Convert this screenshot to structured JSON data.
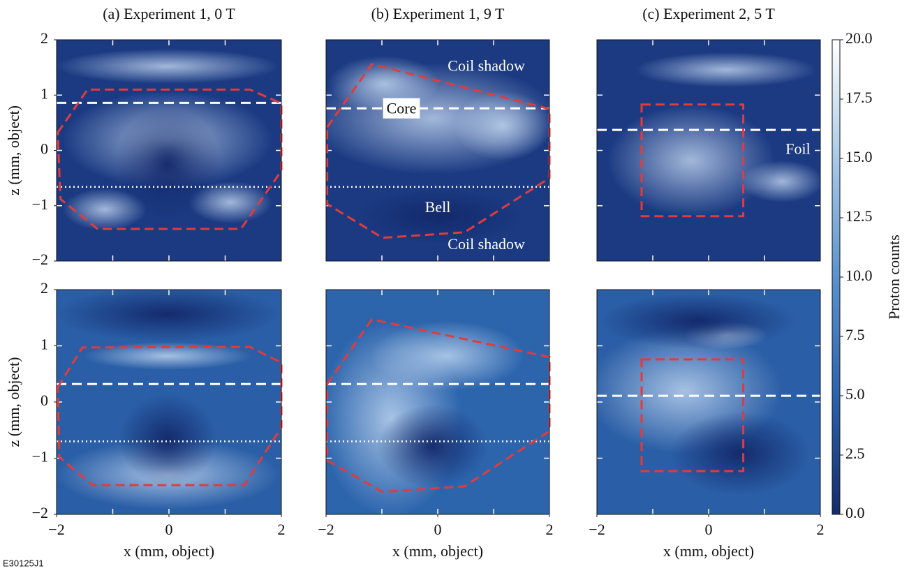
{
  "figure_id": "E30125J1",
  "chart_data": [
    {
      "type": "image",
      "title": "(a) Experiment 1, 0 T",
      "ylabel": "z (mm, object)",
      "xlim": [
        -2,
        2
      ],
      "ylim": [
        -2,
        2
      ],
      "yticks": [
        {
          "value": -2,
          "label": "−2"
        },
        {
          "value": -1,
          "label": "−1"
        },
        0,
        1,
        2
      ],
      "tick_marks": [
        -1,
        0,
        1
      ],
      "dashed_z": 0.86,
      "dotted_z": -0.66,
      "region": [
        [
          -1.98,
          0.32
        ],
        [
          -1.45,
          1.1
        ],
        [
          1.44,
          1.1
        ],
        [
          2,
          0.85
        ],
        [
          2,
          -0.37
        ],
        [
          1.28,
          -1.42
        ],
        [
          -1.27,
          -1.42
        ],
        [
          -1.93,
          -0.88
        ]
      ]
    },
    {
      "type": "image",
      "title": "(b) Experiment 1, 9 T",
      "xlim": [
        -2,
        2
      ],
      "ylim": [
        -2,
        2
      ],
      "tick_marks": [
        -1,
        0,
        1
      ],
      "dashed_z": 0.76,
      "dotted_z": -0.66,
      "region": [
        [
          -1.98,
          0.42
        ],
        [
          -1.18,
          1.56
        ],
        [
          2,
          0.75
        ],
        [
          2,
          -0.5
        ],
        [
          0.48,
          -1.48
        ],
        [
          -0.99,
          -1.58
        ],
        [
          -1.98,
          -0.97
        ]
      ],
      "annotations": [
        {
          "text": "Coil shadow",
          "x": 0.87,
          "z": 1.5,
          "boxed": false
        },
        {
          "text": "Core",
          "x": -0.65,
          "z": 0.73,
          "boxed": true
        },
        {
          "text": "Bell",
          "x": 0,
          "z": -1.05,
          "boxed": false
        },
        {
          "text": "Coil shadow",
          "x": 0.87,
          "z": -1.72,
          "boxed": false
        }
      ]
    },
    {
      "type": "image",
      "title": "(c) Experiment 2, 5 T",
      "xlim": [
        -2,
        2
      ],
      "ylim": [
        -2,
        2
      ],
      "tick_marks": [
        -1,
        0,
        1
      ],
      "dashed_z": 0.37,
      "region": [
        [
          -1.2,
          0.83
        ],
        [
          0.62,
          0.83
        ],
        [
          0.62,
          -1.19
        ],
        [
          -1.2,
          -1.19
        ]
      ],
      "annotations": [
        {
          "text": "Foil",
          "x": 1.6,
          "z": 0,
          "boxed": false
        }
      ]
    },
    {
      "type": "image",
      "ylabel": "z (mm, object)",
      "xlabel": "x (mm, object)",
      "xlim": [
        -2,
        2
      ],
      "ylim": [
        -2,
        2
      ],
      "xticks": [
        {
          "value": -2,
          "label": "−2"
        },
        0,
        2
      ],
      "yticks": [
        {
          "value": -2,
          "label": "−2"
        },
        {
          "value": -1,
          "label": "−1"
        },
        0,
        1,
        2
      ],
      "tick_marks": [
        -1,
        0,
        1
      ],
      "dashed_z": 0.32,
      "dotted_z": -0.7,
      "region": [
        [
          -1.98,
          0.26
        ],
        [
          -1.54,
          0.97
        ],
        [
          1.44,
          0.98
        ],
        [
          2,
          0.7
        ],
        [
          2,
          -0.45
        ],
        [
          1.34,
          -1.48
        ],
        [
          -1.36,
          -1.48
        ],
        [
          -1.95,
          -0.98
        ]
      ]
    },
    {
      "type": "image",
      "xlabel": "x (mm, object)",
      "xlim": [
        -2,
        2
      ],
      "ylim": [
        -2,
        2
      ],
      "xticks": [
        {
          "value": -2,
          "label": "−2"
        },
        0,
        2
      ],
      "tick_marks": [
        -1,
        0,
        1
      ],
      "dashed_z": 0.32,
      "dotted_z": -0.7,
      "region": [
        [
          -1.98,
          0.32
        ],
        [
          -1.18,
          1.47
        ],
        [
          2,
          0.8
        ],
        [
          2,
          -0.52
        ],
        [
          0.48,
          -1.5
        ],
        [
          -0.99,
          -1.6
        ],
        [
          -1.98,
          -1.04
        ]
      ]
    },
    {
      "type": "image",
      "xlabel": "x (mm, object)",
      "xlim": [
        -2,
        2
      ],
      "ylim": [
        -2,
        2
      ],
      "xticks": [
        {
          "value": -2,
          "label": "−2"
        },
        0,
        2
      ],
      "tick_marks": [
        -1,
        0,
        1
      ],
      "dashed_z": 0.11,
      "region": [
        [
          -1.2,
          0.76
        ],
        [
          0.62,
          0.76
        ],
        [
          0.62,
          -1.23
        ],
        [
          -1.2,
          -1.23
        ]
      ]
    },
    {
      "type": "colorbar",
      "ylabel": "Proton counts",
      "ylim": [
        0,
        20
      ],
      "yticks": [
        {
          "value": 0,
          "label": "0.0"
        },
        {
          "value": 2.5,
          "label": "2.5"
        },
        {
          "value": 5,
          "label": "5.0"
        },
        {
          "value": 7.5,
          "label": "7.5"
        },
        {
          "value": 10,
          "label": "10.0"
        },
        {
          "value": 12.5,
          "label": "12.5"
        },
        {
          "value": 15,
          "label": "15.0"
        },
        {
          "value": 17.5,
          "label": "17.5"
        },
        {
          "value": 20,
          "label": "20.0"
        }
      ]
    }
  ]
}
